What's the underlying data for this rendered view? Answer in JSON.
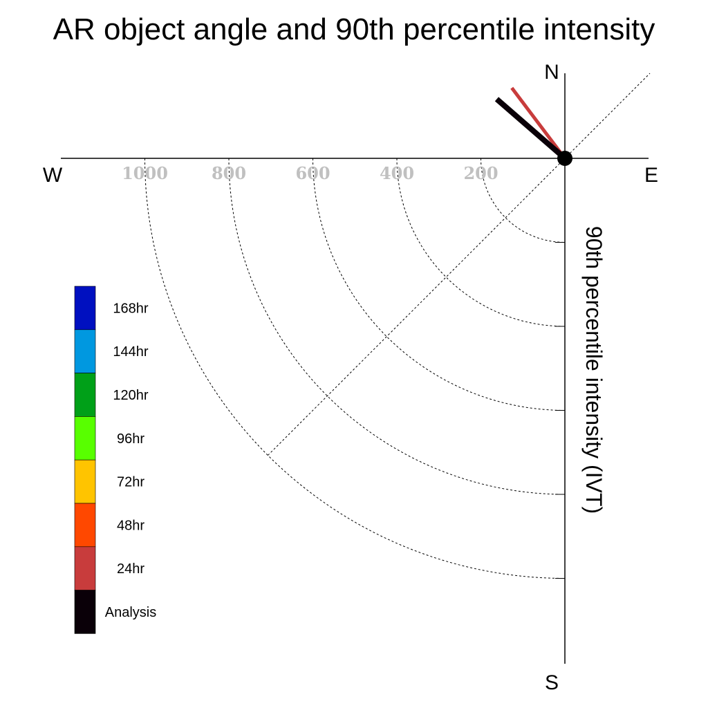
{
  "chart_data": {
    "type": "polar",
    "title": "AR object angle and 90th percentile intensity",
    "radial_label": "90th percentile intensity (IVT)",
    "compass": {
      "n": "N",
      "e": "E",
      "s": "S",
      "w": "W"
    },
    "radial_ticks": [
      200,
      400,
      600,
      800,
      1000
    ],
    "radial_tick_labels": [
      "200",
      "400",
      "600",
      "800",
      "1000"
    ],
    "series": [
      {
        "name": "24hr",
        "color": "#c83c3c",
        "angle_deg": -37,
        "value": 210
      },
      {
        "name": "Analysis",
        "color": "#0a0008",
        "angle_deg": -49,
        "value": 215
      }
    ],
    "legend": [
      {
        "label": "168hr",
        "color": "#0010c0"
      },
      {
        "label": "144hr",
        "color": "#0098e0"
      },
      {
        "label": "120hr",
        "color": "#00a018"
      },
      {
        "label": "96hr",
        "color": "#58ff00"
      },
      {
        "label": "72hr",
        "color": "#ffc400"
      },
      {
        "label": "48hr",
        "color": "#ff4800"
      },
      {
        "label": "24hr",
        "color": "#c83c3c"
      },
      {
        "label": "Analysis",
        "color": "#0a0008"
      }
    ]
  }
}
